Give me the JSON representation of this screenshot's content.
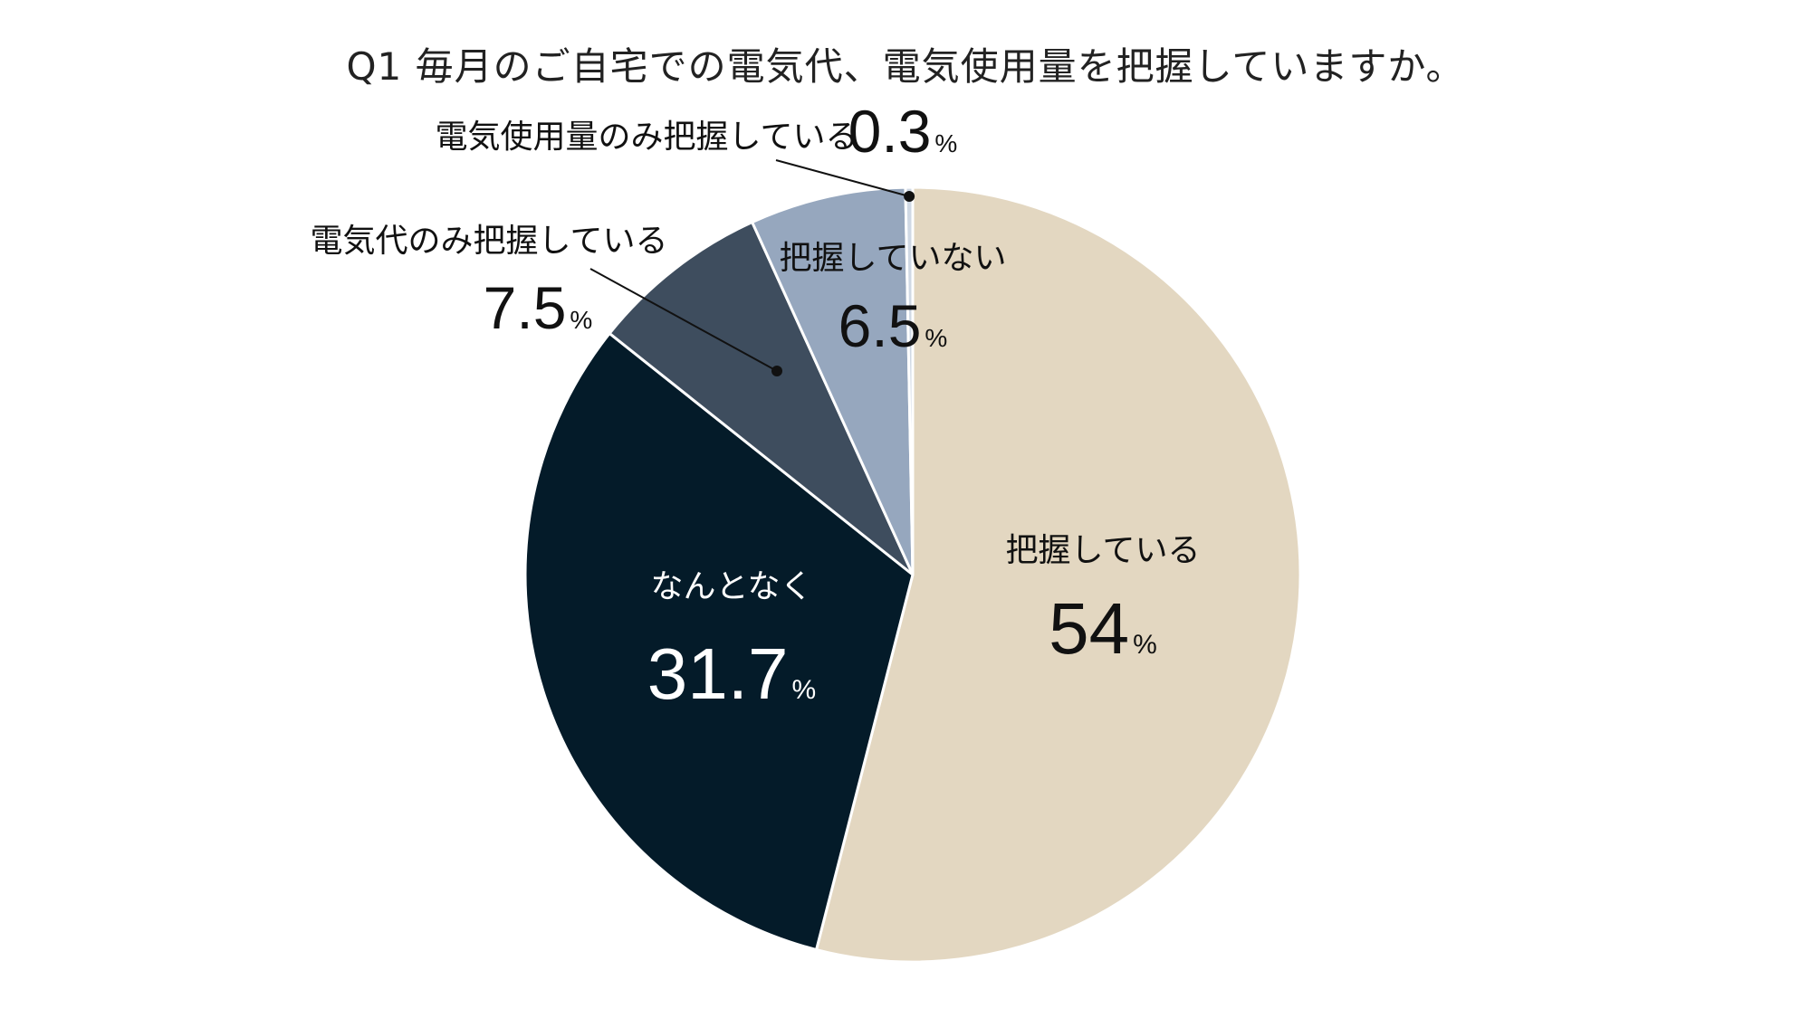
{
  "chart_data": {
    "type": "pie",
    "title": "Q1 毎月のご自宅での電気代、電気使用量を把握していますか。",
    "start_angle_deg": 0,
    "direction": "clockwise",
    "percent_sign": "%",
    "slices": [
      {
        "label": "把握している",
        "value": 54,
        "value_text": "54",
        "color": "#e3d7c1",
        "text_color": "#111111"
      },
      {
        "label": "なんとなく",
        "value": 31.7,
        "value_text": "31.7",
        "color": "#041b29",
        "text_color": "#ffffff"
      },
      {
        "label": "電気代のみ把握している",
        "value": 7.5,
        "value_text": "7.5",
        "color": "#3e4d5e",
        "text_color": "#111111"
      },
      {
        "label": "把握していない",
        "value": 6.5,
        "value_text": "6.5",
        "color": "#96a7be",
        "text_color": "#111111"
      },
      {
        "label": "電気使用量のみ把握している",
        "value": 0.3,
        "value_text": "0.3",
        "color": "#cfd8e4",
        "text_color": "#111111"
      }
    ]
  }
}
